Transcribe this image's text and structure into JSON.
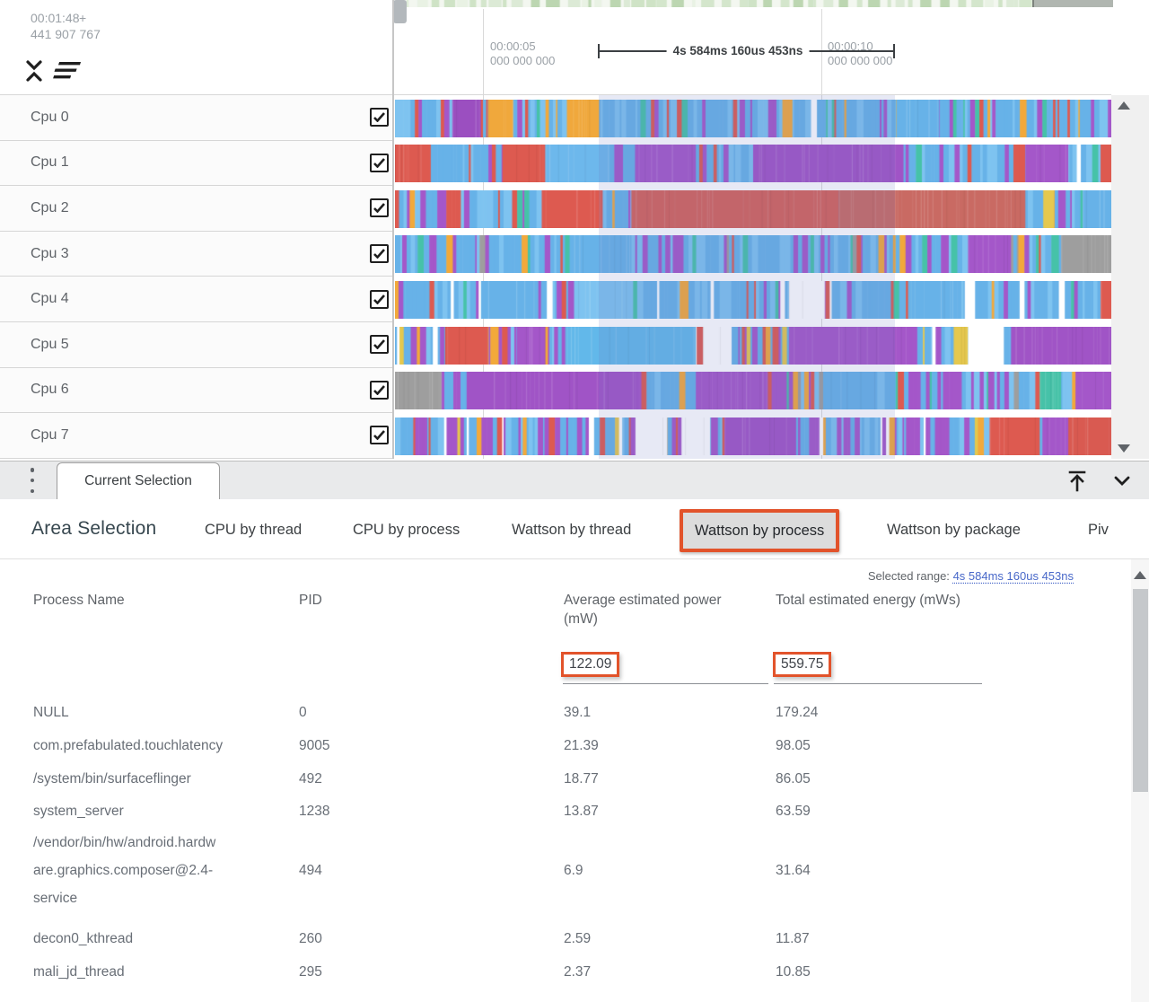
{
  "timeline": {
    "cursor_time": "00:01:48",
    "cursor_sign": "+",
    "cursor_offset": "441 907 767",
    "ticks": [
      {
        "time": "00:00:05",
        "sub": "000 000 000"
      },
      {
        "time": "00:00:10",
        "sub": "000 000 000"
      }
    ],
    "selection_duration": "4s 584ms 160us 453ns"
  },
  "icons": {
    "collapse_tracks": "unfold-less",
    "sort_tracks": "sort-lines",
    "panel_menu": "kebab-vertical",
    "dock_to_top": "arrow-up-to-line",
    "collapse_panel": "chevron-down",
    "scroll_up": "triangle-up",
    "scroll_down": "triangle-down"
  },
  "tracks": [
    {
      "label": "Cpu 0",
      "checked": true,
      "seed": 11,
      "palette": [
        [
          "#67b2e8",
          5
        ],
        [
          "#7ec3f0",
          2
        ],
        [
          "#a457c9",
          1.4
        ],
        [
          "#dd5a50",
          0.7
        ],
        [
          "#f2a93b",
          0.8
        ],
        [
          "#46c2a8",
          0.6
        ],
        [
          "#ffffff",
          0.15
        ]
      ],
      "blocks": [
        [
          0.08,
          0.12,
          "#9b4fc0"
        ],
        [
          0.13,
          0.165,
          "#f0a83c"
        ],
        [
          0.24,
          0.285,
          "#f0a83c"
        ],
        [
          0.7,
          0.76,
          "#67b2e8"
        ]
      ]
    },
    {
      "label": "Cpu 1",
      "checked": true,
      "seed": 22,
      "palette": [
        [
          "#67b2e8",
          5
        ],
        [
          "#dd5a50",
          1.1
        ],
        [
          "#a457c9",
          1.5
        ],
        [
          "#7ec3f0",
          1.6
        ],
        [
          "#46c2a8",
          0.3
        ],
        [
          "#f2a93b",
          0.3
        ],
        [
          "#ffffff",
          0.15
        ]
      ],
      "blocks": [
        [
          0.0,
          0.05,
          "#dd5a50"
        ],
        [
          0.15,
          0.21,
          "#dd5a50"
        ],
        [
          0.21,
          0.3,
          "#6db8ec"
        ],
        [
          0.34,
          0.42,
          "#a457c9"
        ],
        [
          0.5,
          0.71,
          "#a054c6"
        ],
        [
          0.88,
          0.94,
          "#a457c9"
        ],
        [
          0.985,
          1.0,
          "#dd5a50"
        ]
      ]
    },
    {
      "label": "Cpu 2",
      "checked": true,
      "seed": 33,
      "palette": [
        [
          "#67b2e8",
          4
        ],
        [
          "#a457c9",
          2
        ],
        [
          "#dd5a50",
          1.4
        ],
        [
          "#7ec3f0",
          1.5
        ],
        [
          "#f2a93b",
          0.3
        ],
        [
          "#46c2a8",
          0.3
        ]
      ],
      "blocks": [
        [
          0.21,
          0.29,
          "#dd5a50"
        ],
        [
          0.33,
          0.62,
          "#d4625a"
        ],
        [
          0.62,
          0.88,
          "#c96a63"
        ],
        [
          0.905,
          0.92,
          "#e5c84e"
        ],
        [
          0.96,
          1.0,
          "#67b2e8"
        ]
      ]
    },
    {
      "label": "Cpu 3",
      "checked": true,
      "seed": 44,
      "palette": [
        [
          "#67b2e8",
          4.5
        ],
        [
          "#a457c9",
          2
        ],
        [
          "#7ec3f0",
          1.5
        ],
        [
          "#46c2a8",
          0.4
        ],
        [
          "#dd5a50",
          0.5
        ],
        [
          "#9e9e9e",
          0.6
        ],
        [
          "#f2a93b",
          0.2
        ]
      ],
      "blocks": [
        [
          0.25,
          0.33,
          "#67b2e8"
        ],
        [
          0.8,
          0.86,
          "#a457c9"
        ],
        [
          0.93,
          1.0,
          "#9e9e9e"
        ]
      ]
    },
    {
      "label": "Cpu 4",
      "checked": true,
      "seed": 55,
      "palette": [
        [
          "#67b2e8",
          6
        ],
        [
          "#7ec3f0",
          2.5
        ],
        [
          "#a457c9",
          1
        ],
        [
          "#dd5a50",
          0.4
        ],
        [
          "#f2a93b",
          0.4
        ],
        [
          "#ffffff",
          0.8
        ],
        [
          "#46c2a8",
          0.3
        ]
      ],
      "blocks": [
        [
          0.13,
          0.2,
          "#67b2e8"
        ],
        [
          0.25,
          0.33,
          "#7ec3f0"
        ],
        [
          0.55,
          0.6,
          "#ffffff"
        ],
        [
          0.72,
          0.78,
          "#67b2e8"
        ],
        [
          0.985,
          1.0,
          "#dd5a50"
        ]
      ]
    },
    {
      "label": "Cpu 5",
      "checked": true,
      "seed": 66,
      "palette": [
        [
          "#67b2e8",
          3
        ],
        [
          "#a457c9",
          2.5
        ],
        [
          "#dd5a50",
          1
        ],
        [
          "#ffffff",
          1
        ],
        [
          "#f2a93b",
          0.4
        ],
        [
          "#e5c84e",
          0.3
        ],
        [
          "#7ec3f0",
          1
        ]
      ],
      "blocks": [
        [
          0.07,
          0.13,
          "#dd5a50"
        ],
        [
          0.17,
          0.21,
          "#a457c9"
        ],
        [
          0.24,
          0.42,
          "#62b8ea"
        ],
        [
          0.43,
          0.47,
          "#ffffff"
        ],
        [
          0.55,
          0.72,
          "#a457c9"
        ],
        [
          0.78,
          0.8,
          "#e5c84e"
        ],
        [
          0.8,
          0.85,
          "#ffffff"
        ],
        [
          0.86,
          1.0,
          "#a054c6"
        ]
      ]
    },
    {
      "label": "Cpu 6",
      "checked": true,
      "seed": 77,
      "palette": [
        [
          "#a457c9",
          3.5
        ],
        [
          "#67b2e8",
          3
        ],
        [
          "#7ec3f0",
          1.5
        ],
        [
          "#9e9e9e",
          0.8
        ],
        [
          "#dd5a50",
          0.3
        ],
        [
          "#46c2a8",
          0.4
        ],
        [
          "#f2a93b",
          0.3
        ]
      ],
      "blocks": [
        [
          0.0,
          0.065,
          "#9e9e9e"
        ],
        [
          0.1,
          0.34,
          "#a054c6"
        ],
        [
          0.42,
          0.52,
          "#a457c9"
        ],
        [
          0.6,
          0.67,
          "#67b2e8"
        ],
        [
          0.9,
          0.93,
          "#46c2a8"
        ],
        [
          0.95,
          1.0,
          "#a457c9"
        ]
      ]
    },
    {
      "label": "Cpu 7",
      "checked": true,
      "seed": 88,
      "palette": [
        [
          "#67b2e8",
          4
        ],
        [
          "#a457c9",
          2.5
        ],
        [
          "#7ec3f0",
          1.5
        ],
        [
          "#ffffff",
          0.7
        ],
        [
          "#f2a93b",
          0.4
        ],
        [
          "#e5c84e",
          0.3
        ],
        [
          "#dd5a50",
          0.8
        ]
      ],
      "blocks": [
        [
          0.34,
          0.38,
          "#ffffff"
        ],
        [
          0.4,
          0.44,
          "#ffffff"
        ],
        [
          0.46,
          0.56,
          "#a054c6"
        ],
        [
          0.83,
          0.9,
          "#dd5a50"
        ],
        [
          0.91,
          0.935,
          "#a457c9"
        ],
        [
          0.94,
          1.0,
          "#d95a51"
        ]
      ]
    }
  ],
  "bottom_panel": {
    "handle_tab": "Current Selection",
    "section_title": "Area Selection",
    "views": [
      {
        "label": "CPU by thread",
        "selected": false
      },
      {
        "label": "CPU by process",
        "selected": false
      },
      {
        "label": "Wattson by thread",
        "selected": false
      },
      {
        "label": "Wattson by process",
        "selected": true
      },
      {
        "label": "Wattson by package",
        "selected": false
      },
      {
        "label": "Piv",
        "selected": false
      }
    ],
    "selected_range_label": "Selected range:",
    "selected_range_value": "4s 584ms 160us 453ns",
    "table": {
      "headers": [
        "Process Name",
        "PID",
        "Average estimated power (mW)",
        "Total estimated energy (mWs)"
      ],
      "totals": {
        "avg_power": "122.09",
        "total_energy": "559.75"
      },
      "rows": [
        {
          "name_lines": [
            "NULL"
          ],
          "pid": "0",
          "avg_power": "39.1",
          "total_energy": "179.24"
        },
        {
          "name_lines": [
            "com.prefabulated.touchlatency"
          ],
          "pid": "9005",
          "avg_power": "21.39",
          "total_energy": "98.05"
        },
        {
          "name_lines": [
            "/system/bin/surfaceflinger"
          ],
          "pid": "492",
          "avg_power": "18.77",
          "total_energy": "86.05"
        },
        {
          "name_lines": [
            "system_server"
          ],
          "pid": "1238",
          "avg_power": "13.87",
          "total_energy": "63.59"
        },
        {
          "name_lines": [
            "/vendor/bin/hw/android.hardw",
            "are.graphics.composer@2.4-",
            "service"
          ],
          "pid": "494",
          "avg_power": "6.9",
          "total_energy": "31.64"
        },
        {
          "name_lines": [
            "decon0_kthread"
          ],
          "pid": "260",
          "avg_power": "2.59",
          "total_energy": "11.87"
        },
        {
          "name_lines": [
            "mali_jd_thread"
          ],
          "pid": "295",
          "avg_power": "2.37",
          "total_energy": "10.85"
        }
      ]
    }
  },
  "colors": {
    "highlight_orange": "#e2532b",
    "link_blue": "#4868c9",
    "selected_view_bg": "#dcdcdc",
    "selection_overlay": "rgba(108,120,190,0.16)",
    "track_blue": "#67b2e8",
    "track_purple": "#a457c9",
    "track_red": "#dd5a50",
    "track_orange": "#f2a93b"
  }
}
